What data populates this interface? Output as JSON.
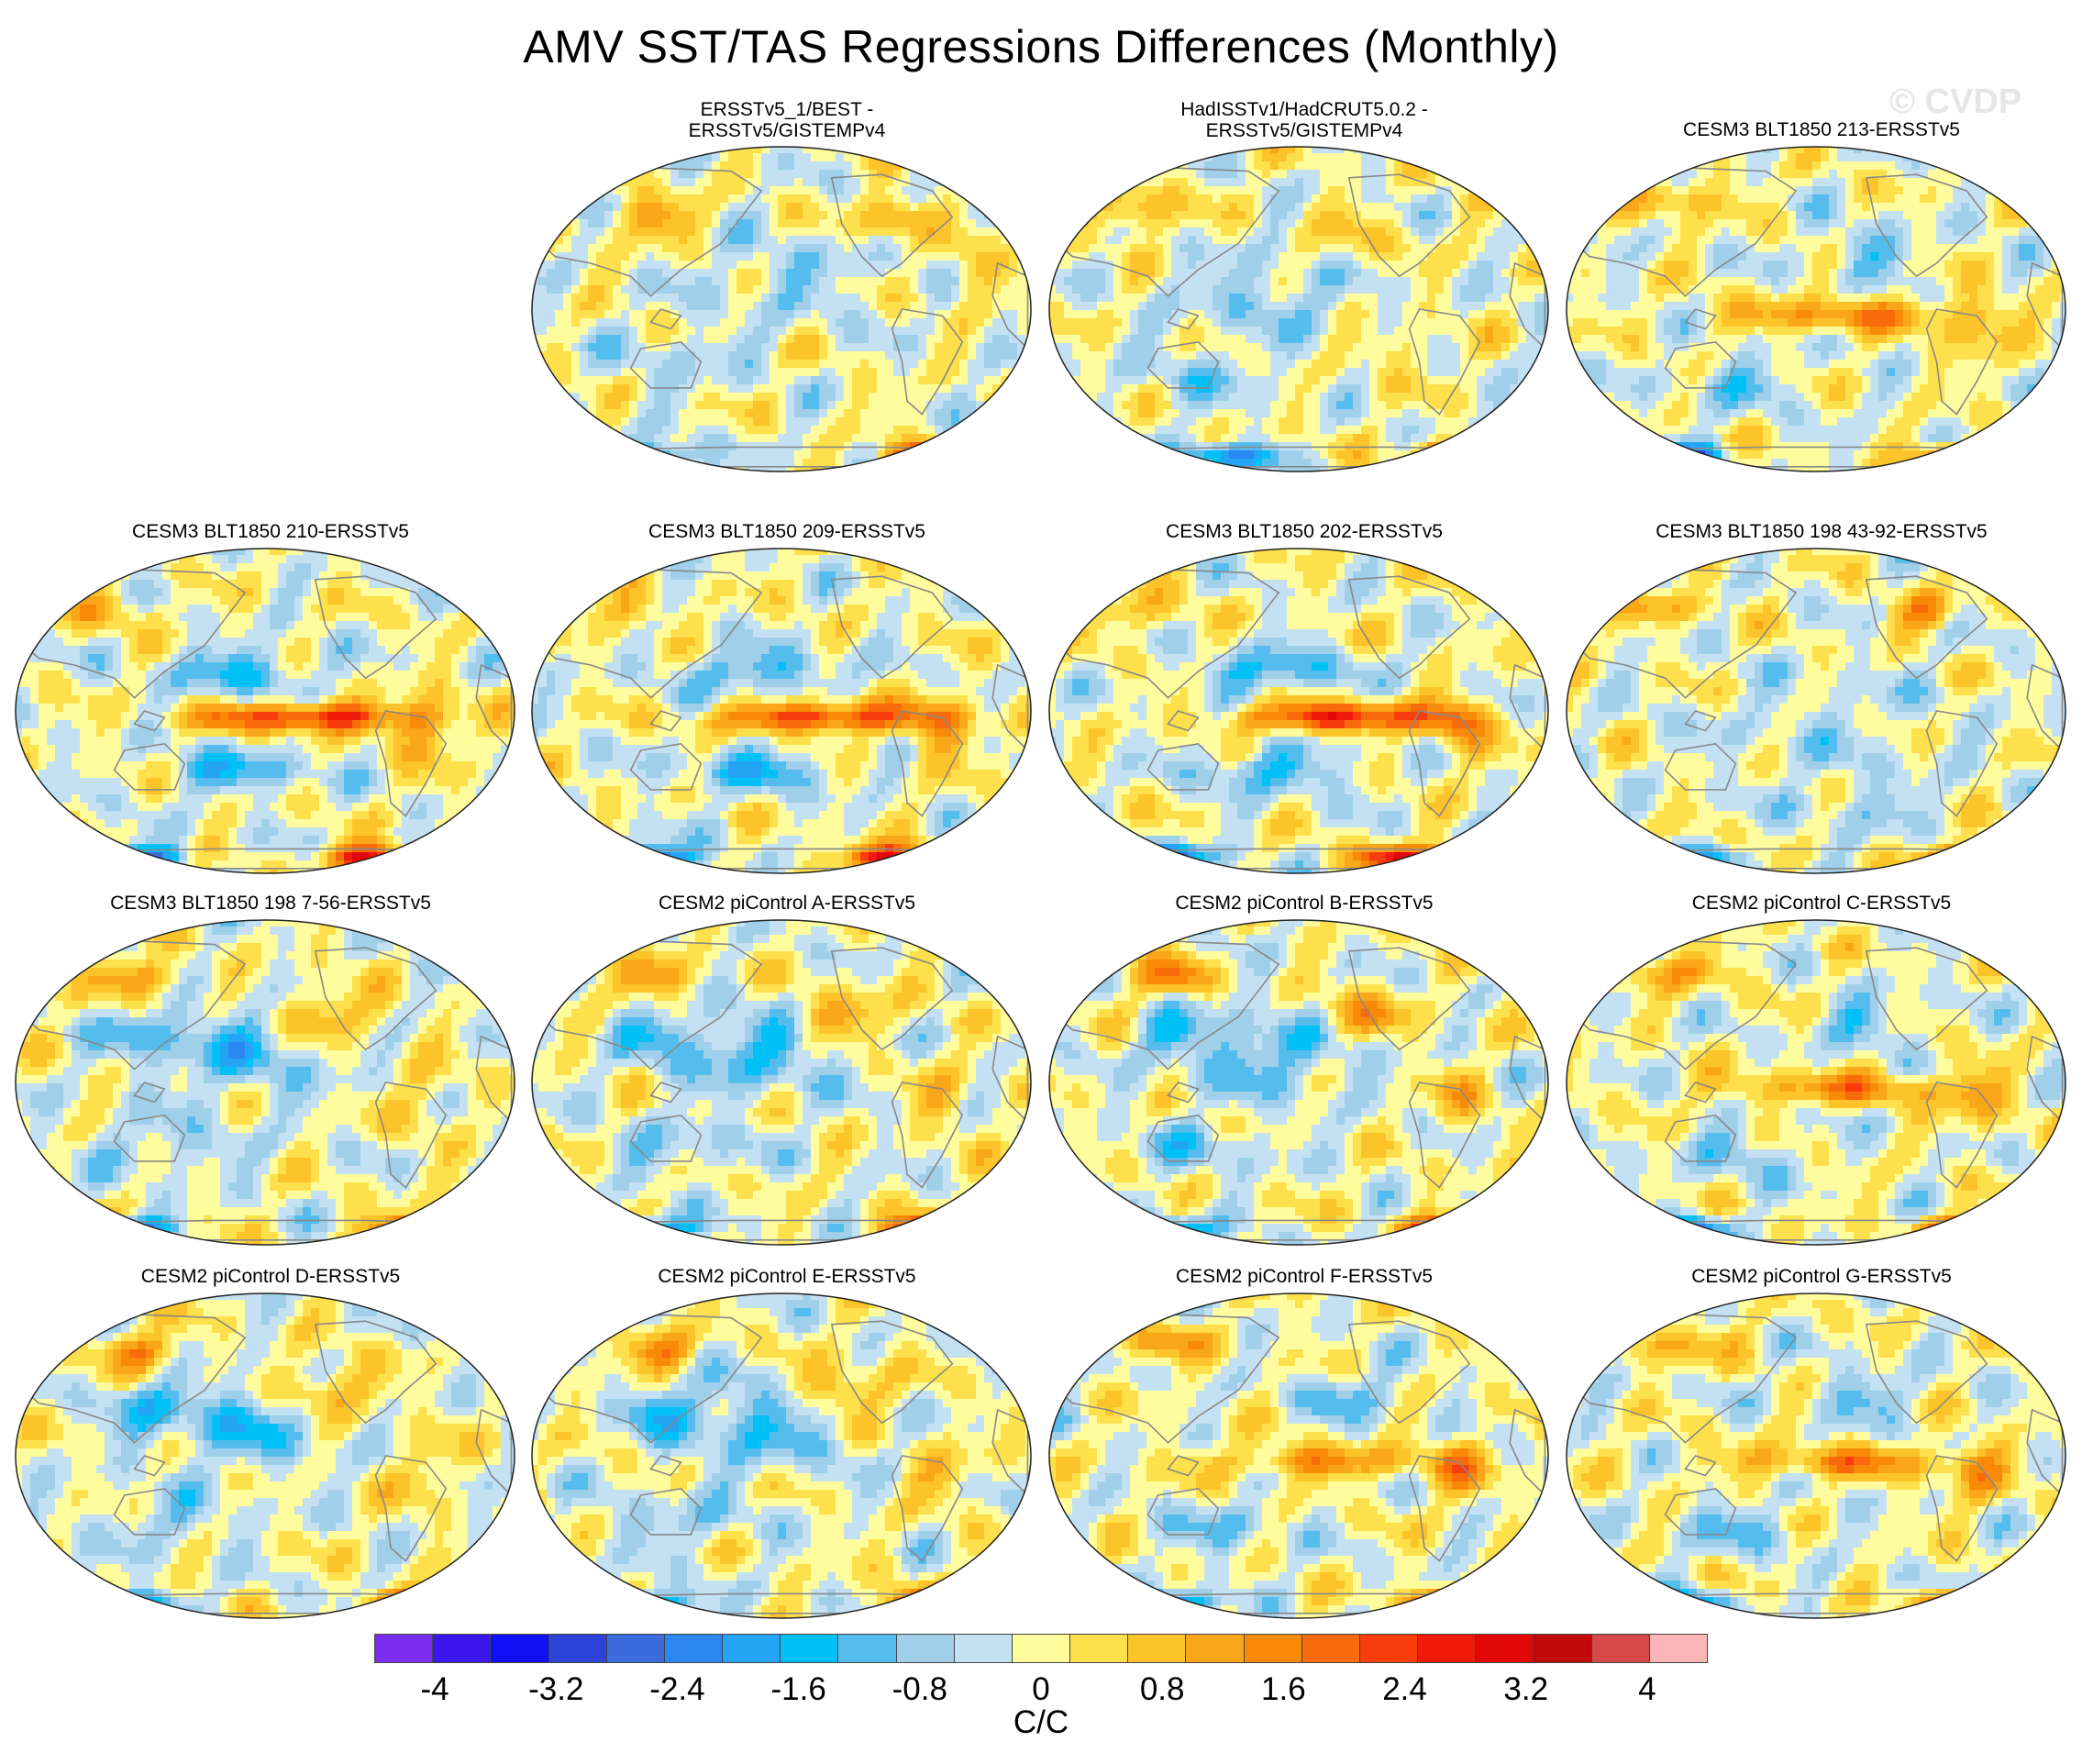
{
  "title": "AMV SST/TAS Regressions Differences (Monthly)",
  "watermark": "© CVDP",
  "chart_data": {
    "type": "heatmap",
    "title": "AMV SST/TAS Regressions Differences (Monthly)",
    "projection": "Robinson-like global map, Pacific-centered",
    "panels": [
      {
        "row": 0,
        "col": 1,
        "title_lines": [
          "ERSSTv5_1/BEST -",
          "ERSSTv5/GISTEMPv4"
        ],
        "pattern": "obs_a"
      },
      {
        "row": 0,
        "col": 2,
        "title_lines": [
          "HadISSTv1/HadCRUT5.0.2 -",
          "ERSSTv5/GISTEMPv4"
        ],
        "pattern": "obs_b"
      },
      {
        "row": 0,
        "col": 3,
        "title_lines": [
          "CESM3 BLT1850 213-ERSSTv5"
        ],
        "pattern": "enso_mod"
      },
      {
        "row": 1,
        "col": 0,
        "title_lines": [
          "CESM3 BLT1850 210-ERSSTv5"
        ],
        "pattern": "enso_strong"
      },
      {
        "row": 1,
        "col": 1,
        "title_lines": [
          "CESM3 BLT1850 209-ERSSTv5"
        ],
        "pattern": "enso_strong"
      },
      {
        "row": 1,
        "col": 2,
        "title_lines": [
          "CESM3 BLT1850 202-ERSSTv5"
        ],
        "pattern": "enso_strong"
      },
      {
        "row": 1,
        "col": 3,
        "title_lines": [
          "CESM3 BLT1850 198 43-92-ERSSTv5"
        ],
        "pattern": "weak"
      },
      {
        "row": 2,
        "col": 0,
        "title_lines": [
          "CESM3 BLT1850 198 7-56-ERSSTv5"
        ],
        "pattern": "cool_pac"
      },
      {
        "row": 2,
        "col": 1,
        "title_lines": [
          "CESM2 piControl A-ERSSTv5"
        ],
        "pattern": "cool_pac"
      },
      {
        "row": 2,
        "col": 2,
        "title_lines": [
          "CESM2 piControl B-ERSSTv5"
        ],
        "pattern": "cool_pac"
      },
      {
        "row": 2,
        "col": 3,
        "title_lines": [
          "CESM2 piControl C-ERSSTv5"
        ],
        "pattern": "enso_mod"
      },
      {
        "row": 3,
        "col": 0,
        "title_lines": [
          "CESM2 piControl D-ERSSTv5"
        ],
        "pattern": "cool_pac"
      },
      {
        "row": 3,
        "col": 1,
        "title_lines": [
          "CESM2 piControl E-ERSSTv5"
        ],
        "pattern": "cool_pac"
      },
      {
        "row": 3,
        "col": 2,
        "title_lines": [
          "CESM2 piControl F-ERSSTv5"
        ],
        "pattern": "enso_mod"
      },
      {
        "row": 3,
        "col": 3,
        "title_lines": [
          "CESM2 piControl G-ERSSTv5"
        ],
        "pattern": "enso_mod"
      }
    ],
    "colorbar": {
      "min": -4.4,
      "max": 4.4,
      "step": 0.4,
      "colors": [
        "#7a2ff0",
        "#3b17ee",
        "#1010f5",
        "#2c42d8",
        "#3a6cdd",
        "#2b87f2",
        "#25a4f5",
        "#00c0f5",
        "#55bdee",
        "#9fcfe9",
        "#c4e1f3",
        "#fefc9c",
        "#fde04c",
        "#fcc42a",
        "#faa61a",
        "#f98a08",
        "#f86a0a",
        "#f83c0b",
        "#f01a0a",
        "#e30808",
        "#c20808",
        "#d84848",
        "#fdb6b8"
      ],
      "tick_labels": [
        "-4",
        "-3.2",
        "-2.4",
        "-1.6",
        "-0.8",
        "0",
        "0.8",
        "1.6",
        "2.4",
        "3.2",
        "4"
      ],
      "tick_values": [
        -4,
        -3.2,
        -2.4,
        -1.6,
        -0.8,
        0,
        0.8,
        1.6,
        2.4,
        3.2,
        4
      ],
      "units": "C/C"
    }
  }
}
